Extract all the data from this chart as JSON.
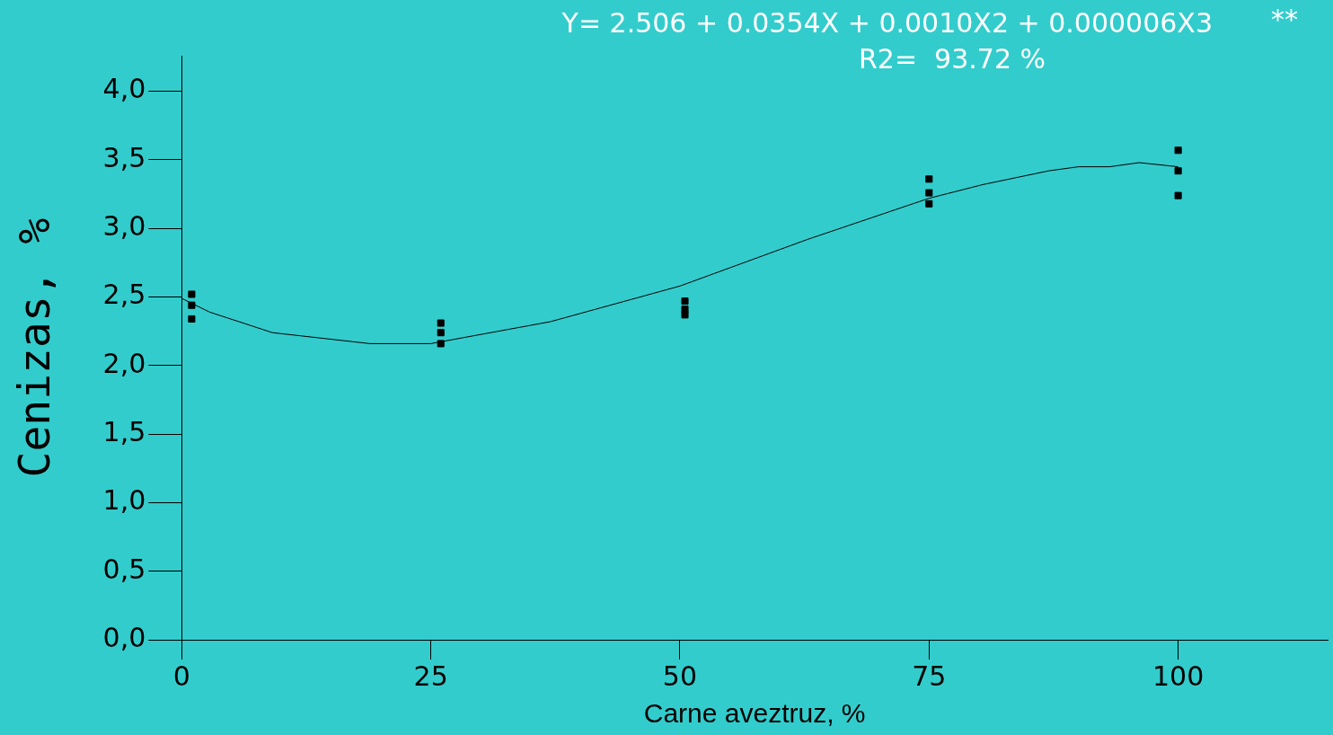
{
  "chart_data": {
    "type": "scatter",
    "xlabel": "Carne aveztruz, %",
    "ylabel": "Cenizas, %",
    "annotations": [
      "Y= 2.506 + 0.0354X + 0.0010X2 + 0.000006X3",
      "**",
      "R2=  93.72 %"
    ],
    "series": [
      {
        "color": "#000000",
        "marker": "square",
        "x": [
          1,
          1,
          1,
          26,
          26,
          26,
          50.5,
          50.5,
          50.5,
          75,
          75,
          75,
          100,
          100,
          100
        ],
        "values": [
          2.52,
          2.44,
          2.34,
          2.31,
          2.24,
          2.16,
          2.47,
          2.41,
          2.37,
          3.36,
          3.26,
          3.18,
          3.57,
          3.42,
          3.24
        ]
      },
      {
        "type": "line",
        "color": "#000000",
        "marker": "none",
        "line_style": "solid",
        "x": [
          0,
          2.8,
          9.1,
          18.9,
          25,
          37,
          50,
          62.8,
          75,
          80.4,
          87,
          90,
          93.1,
          96.1,
          100
        ],
        "values": [
          2.49,
          2.39,
          2.24,
          2.16,
          2.16,
          2.32,
          2.58,
          2.92,
          3.22,
          3.32,
          3.42,
          3.45,
          3.45,
          3.48,
          3.45
        ]
      }
    ],
    "xlim": [
      0,
      115
    ],
    "xticks": [
      0,
      25,
      50,
      75,
      100
    ],
    "ylim": [
      0,
      4.26
    ],
    "yticks": [
      {
        "value": 0,
        "label": "0,0"
      },
      {
        "value": 0.5,
        "label": "0,5"
      },
      {
        "value": 1,
        "label": "1,0"
      },
      {
        "value": 1.5,
        "label": "1,5"
      },
      {
        "value": 2,
        "label": "2,0"
      },
      {
        "value": 2.5,
        "label": "2,5"
      },
      {
        "value": 3,
        "label": "3,0"
      },
      {
        "value": 3.5,
        "label": "3,5"
      },
      {
        "value": 4,
        "label": "4,0"
      }
    ],
    "grid": false,
    "legend": false
  }
}
